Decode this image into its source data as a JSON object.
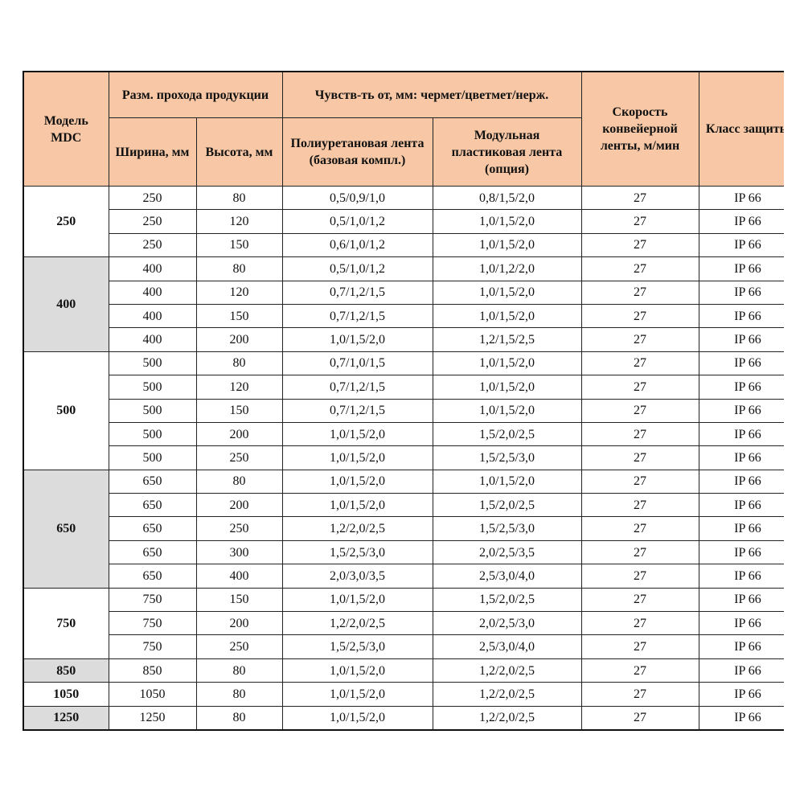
{
  "table": {
    "header": {
      "model": "Модель MDC",
      "size": "Разм. прохода продукции",
      "sens": "Чувств-ть от, мм: чермет/цветмет/нерж.",
      "speed": "Скорость конвейерной ленты, м/мин",
      "class": "Класс защиты",
      "width": "Ширина, мм",
      "height": "Высота, мм",
      "pu": "Полиуретановая лента (базовая компл.)",
      "modular": "Модульная пластиковая лента (опция)"
    },
    "groups": [
      {
        "model": "250",
        "rows": [
          [
            "250",
            "80",
            "0,5/0,9/1,0",
            "0,8/1,5/2,0",
            "27",
            "IP 66"
          ],
          [
            "250",
            "120",
            "0,5/1,0/1,2",
            "1,0/1,5/2,0",
            "27",
            "IP 66"
          ],
          [
            "250",
            "150",
            "0,6/1,0/1,2",
            "1,0/1,5/2,0",
            "27",
            "IP 66"
          ]
        ]
      },
      {
        "model": "400",
        "rows": [
          [
            "400",
            "80",
            "0,5/1,0/1,2",
            "1,0/1,2/2,0",
            "27",
            "IP 66"
          ],
          [
            "400",
            "120",
            "0,7/1,2/1,5",
            "1,0/1,5/2,0",
            "27",
            "IP 66"
          ],
          [
            "400",
            "150",
            "0,7/1,2/1,5",
            "1,0/1,5/2,0",
            "27",
            "IP 66"
          ],
          [
            "400",
            "200",
            "1,0/1,5/2,0",
            "1,2/1,5/2,5",
            "27",
            "IP 66"
          ]
        ]
      },
      {
        "model": "500",
        "rows": [
          [
            "500",
            "80",
            "0,7/1,0/1,5",
            "1,0/1,5/2,0",
            "27",
            "IP 66"
          ],
          [
            "500",
            "120",
            "0,7/1,2/1,5",
            "1,0/1,5/2,0",
            "27",
            "IP 66"
          ],
          [
            "500",
            "150",
            "0,7/1,2/1,5",
            "1,0/1,5/2,0",
            "27",
            "IP 66"
          ],
          [
            "500",
            "200",
            "1,0/1,5/2,0",
            "1,5/2,0/2,5",
            "27",
            "IP 66"
          ],
          [
            "500",
            "250",
            "1,0/1,5/2,0",
            "1,5/2,5/3,0",
            "27",
            "IP 66"
          ]
        ]
      },
      {
        "model": "650",
        "rows": [
          [
            "650",
            "80",
            "1,0/1,5/2,0",
            "1,0/1,5/2,0",
            "27",
            "IP 66"
          ],
          [
            "650",
            "200",
            "1,0/1,5/2,0",
            "1,5/2,0/2,5",
            "27",
            "IP 66"
          ],
          [
            "650",
            "250",
            "1,2/2,0/2,5",
            "1,5/2,5/3,0",
            "27",
            "IP 66"
          ],
          [
            "650",
            "300",
            "1,5/2,5/3,0",
            "2,0/2,5/3,5",
            "27",
            "IP 66"
          ],
          [
            "650",
            "400",
            "2,0/3,0/3,5",
            "2,5/3,0/4,0",
            "27",
            "IP 66"
          ]
        ]
      },
      {
        "model": "750",
        "rows": [
          [
            "750",
            "150",
            "1,0/1,5/2,0",
            "1,5/2,0/2,5",
            "27",
            "IP 66"
          ],
          [
            "750",
            "200",
            "1,2/2,0/2,5",
            "2,0/2,5/3,0",
            "27",
            "IP 66"
          ],
          [
            "750",
            "250",
            "1,5/2,5/3,0",
            "2,5/3,0/4,0",
            "27",
            "IP 66"
          ]
        ]
      },
      {
        "model": "850",
        "rows": [
          [
            "850",
            "80",
            "1,0/1,5/2,0",
            "1,2/2,0/2,5",
            "27",
            "IP 66"
          ]
        ]
      },
      {
        "model": "1050",
        "rows": [
          [
            "1050",
            "80",
            "1,0/1,5/2,0",
            "1,2/2,0/2,5",
            "27",
            "IP 66"
          ]
        ]
      },
      {
        "model": "1250",
        "rows": [
          [
            "1250",
            "80",
            "1,0/1,5/2,0",
            "1,2/2,0/2,5",
            "27",
            "IP 66"
          ]
        ]
      }
    ]
  }
}
